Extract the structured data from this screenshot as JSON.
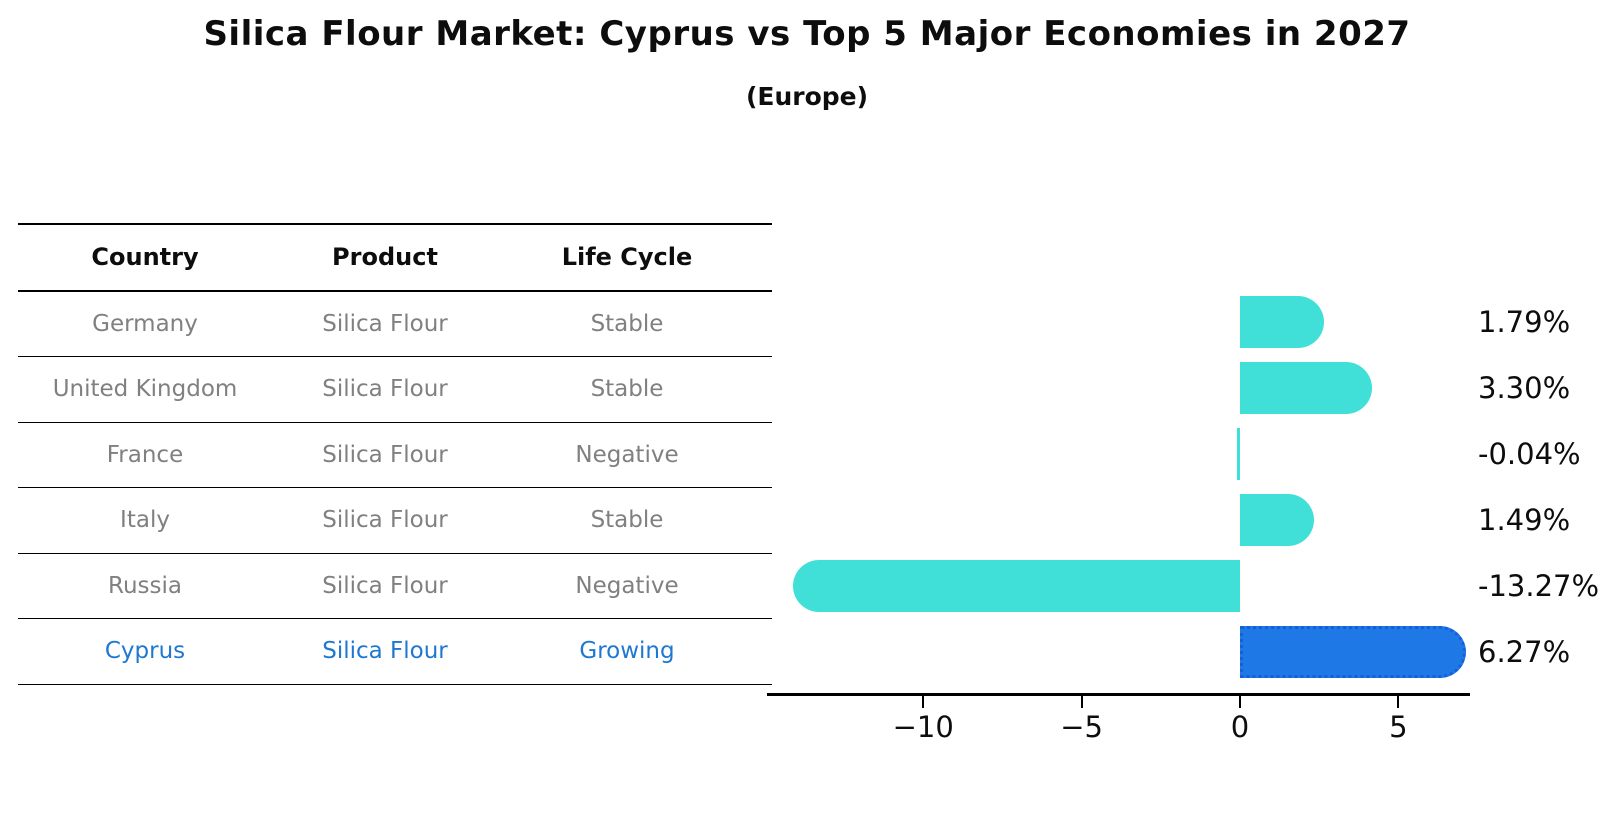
{
  "title": "Silica Flour Market: Cyprus vs Top 5 Major Economies in 2027",
  "subtitle": "(Europe)",
  "table": {
    "headers": [
      "Country",
      "Product",
      "Life Cycle"
    ],
    "rows": [
      {
        "country": "Germany",
        "product": "Silica Flour",
        "life_cycle": "Stable",
        "highlight": false
      },
      {
        "country": "United Kingdom",
        "product": "Silica Flour",
        "life_cycle": "Stable",
        "highlight": false
      },
      {
        "country": "France",
        "product": "Silica Flour",
        "life_cycle": "Negative",
        "highlight": false
      },
      {
        "country": "Italy",
        "product": "Silica Flour",
        "life_cycle": "Stable",
        "highlight": false
      },
      {
        "country": "Russia",
        "product": "Silica Flour",
        "life_cycle": "Negative",
        "highlight": false
      },
      {
        "country": "Cyprus",
        "product": "Silica Flour",
        "life_cycle": "Growing",
        "highlight": true
      }
    ]
  },
  "chart_data": {
    "type": "bar",
    "orientation": "horizontal",
    "title": "",
    "xlabel": "",
    "ylabel": "",
    "categories": [
      "Germany",
      "United Kingdom",
      "France",
      "Italy",
      "Russia",
      "Cyprus"
    ],
    "values": [
      1.79,
      3.3,
      -0.04,
      1.49,
      -13.27,
      6.27
    ],
    "value_labels": [
      "1.79%",
      "3.30%",
      "-0.04%",
      "1.49%",
      "-13.27%",
      "6.27%"
    ],
    "unit": "%",
    "xlim": [
      -14.93,
      7.26
    ],
    "xticks": [
      -10,
      -5,
      0,
      5
    ],
    "xtick_labels": [
      "−10",
      "−5",
      "0",
      "5"
    ],
    "grid": false,
    "legend": null,
    "highlight_index": 5,
    "highlight_category": "Cyprus"
  },
  "colors": {
    "bar_default": "#40e0d8",
    "bar_highlight": "#1e78e6",
    "bar_highlight_border": "#1560d8",
    "highlight_text": "#1e78d2",
    "table_text": "#808080",
    "axis_text": "#0d0d0d",
    "background": "#ffffff"
  }
}
